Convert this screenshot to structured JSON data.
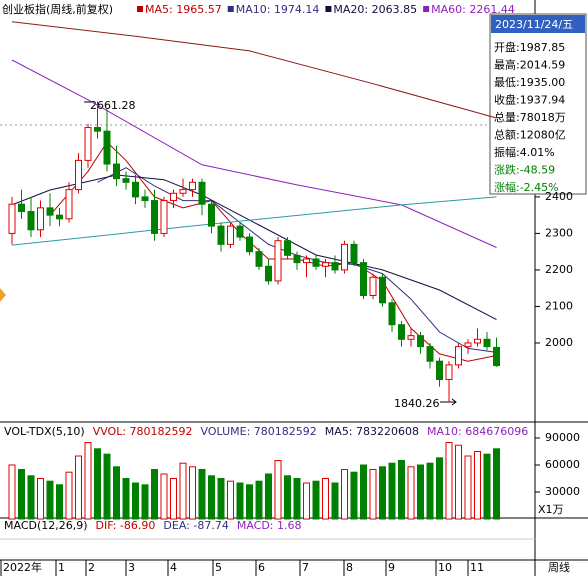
{
  "chart_data": {
    "type": "candlestick",
    "title": "创业板指(周线,前复权)",
    "open": [
      2300,
      2380,
      2360,
      2310,
      2370,
      2350,
      2340,
      2420,
      2500,
      2590,
      2580,
      2490,
      2450,
      2440,
      2400,
      2390,
      2300,
      2390,
      2410,
      2420,
      2440,
      2380,
      2320,
      2270,
      2320,
      2290,
      2250,
      2210,
      2170,
      2280,
      2240,
      2220,
      2230,
      2210,
      2220,
      2200,
      2270,
      2220,
      2130,
      2180,
      2110,
      2050,
      2010,
      2020,
      1990,
      1950,
      1900,
      1940,
      1990,
      2000,
      2010,
      1987.85
    ],
    "high": [
      2400,
      2420,
      2400,
      2390,
      2410,
      2370,
      2440,
      2520,
      2600,
      2661.28,
      2640,
      2540,
      2470,
      2460,
      2420,
      2420,
      2400,
      2420,
      2450,
      2450,
      2450,
      2390,
      2330,
      2330,
      2330,
      2300,
      2260,
      2230,
      2290,
      2290,
      2250,
      2240,
      2240,
      2230,
      2240,
      2280,
      2280,
      2230,
      2190,
      2190,
      2120,
      2060,
      2040,
      2030,
      2000,
      1960,
      1950,
      2000,
      2010,
      2040,
      2030,
      2014.59
    ],
    "low": [
      2270,
      2340,
      2290,
      2290,
      2320,
      2320,
      2330,
      2410,
      2480,
      2560,
      2470,
      2430,
      2420,
      2380,
      2370,
      2280,
      2290,
      2370,
      2400,
      2400,
      2350,
      2300,
      2250,
      2260,
      2280,
      2240,
      2200,
      2160,
      2160,
      2230,
      2200,
      2180,
      2200,
      2180,
      2190,
      2190,
      2210,
      2120,
      2120,
      2100,
      2030,
      1990,
      1990,
      1970,
      1930,
      1880,
      1840.26,
      1930,
      1970,
      1990,
      1980,
      1935
    ],
    "close": [
      2380,
      2360,
      2310,
      2370,
      2350,
      2340,
      2420,
      2500,
      2590,
      2580,
      2490,
      2450,
      2440,
      2400,
      2390,
      2300,
      2390,
      2410,
      2420,
      2440,
      2380,
      2320,
      2270,
      2320,
      2290,
      2250,
      2210,
      2170,
      2280,
      2240,
      2220,
      2230,
      2210,
      2220,
      2200,
      2270,
      2220,
      2130,
      2180,
      2110,
      2050,
      2010,
      2020,
      1990,
      1950,
      1900,
      1940,
      1990,
      2000,
      2010,
      1990,
      1937.94
    ],
    "up_color": "#e00000",
    "down_color": "#008000",
    "ylim": [
      1789,
      2890
    ],
    "yticks": [
      2000,
      2100,
      2200,
      2300,
      2400
    ],
    "series": [
      {
        "label": "MA5: 1965.57",
        "color": "#c00000",
        "x": [
          4,
          8,
          10,
          12,
          15,
          18,
          21,
          24,
          27,
          30,
          33,
          36,
          39,
          42,
          45,
          48,
          51
        ],
        "values": [
          2350,
          2470,
          2550,
          2500,
          2400,
          2370,
          2390,
          2300,
          2230,
          2230,
          2210,
          2220,
          2170,
          2040,
          1970,
          1950,
          1965.57
        ]
      },
      {
        "label": "MA10: 1974.14",
        "color": "#303080",
        "x": [
          9,
          12,
          15,
          18,
          21,
          24,
          27,
          30,
          33,
          36,
          39,
          42,
          45,
          48,
          51
        ],
        "values": [
          2440,
          2480,
          2430,
          2390,
          2390,
          2330,
          2270,
          2240,
          2220,
          2215,
          2190,
          2120,
          2030,
          1985,
          1974.14
        ]
      },
      {
        "label": "MA20: 2063.85",
        "color": "#101040",
        "x": [
          0,
          4,
          11,
          16,
          20,
          26,
          32,
          39,
          45,
          51
        ],
        "values": [
          2378,
          2419,
          2460,
          2447,
          2405,
          2323,
          2241,
          2200,
          2145,
          2063.85
        ]
      },
      {
        "label": "MA60: 2261.44",
        "color": "#9020c0",
        "x": [
          0,
          8,
          20,
          30,
          41,
          51
        ],
        "values": [
          2775,
          2666,
          2488,
          2433,
          2378,
          2261.44
        ]
      },
      {
        "color": "#8b1a1a",
        "x": [
          0,
          13,
          25,
          38,
          51
        ],
        "values": [
          2880,
          2840,
          2800,
          2710,
          2616
        ]
      },
      {
        "color": "#2a9aa0",
        "x": [
          0,
          20,
          41,
          51
        ],
        "values": [
          2268,
          2323,
          2378,
          2400
        ]
      }
    ],
    "annotations": [
      "2661.28",
      "1840.26"
    ],
    "info": {
      "date": "2023/11/24/五",
      "rows": [
        "开盘:1987.85",
        "最高:2014.59",
        "最低:1935.00",
        "收盘:1937.94",
        "总量:78018万",
        "总额:12080亿",
        "振幅:4.01%",
        "涨跌:-48.59",
        "涨幅:-2.45%"
      ]
    },
    "volume": {
      "headers": [
        "VOL-TDX(5,10)",
        "VVOL: 780182592",
        "VOLUME: 780182592",
        "MA5: 783220608",
        "MA10: 684676096"
      ],
      "values": [
        60000,
        55000,
        48000,
        45000,
        42000,
        38000,
        52000,
        70000,
        85000,
        78000,
        72000,
        58000,
        45000,
        40000,
        38000,
        55000,
        50000,
        45000,
        62000,
        58000,
        55000,
        48000,
        45000,
        42000,
        40000,
        38000,
        42000,
        50000,
        65000,
        48000,
        45000,
        40000,
        42000,
        45000,
        40000,
        55000,
        52000,
        60000,
        55000,
        58000,
        62000,
        65000,
        58000,
        60000,
        62000,
        68000,
        85000,
        82000,
        70000,
        75000,
        72000,
        78018
      ],
      "ylim": [
        0,
        100000
      ],
      "yticks": [
        30000,
        60000,
        90000
      ],
      "unit": "X1万"
    },
    "macd": {
      "headers": [
        "MACD(12,26,9)",
        "DIF: -86.90",
        "DEA: -87.74",
        "MACD: 1.68"
      ]
    },
    "xlabels": [
      "2022年",
      "1",
      "2",
      "3",
      "4",
      "5",
      "6",
      "7",
      "8",
      "9",
      "10",
      "11"
    ],
    "period": "周线"
  }
}
